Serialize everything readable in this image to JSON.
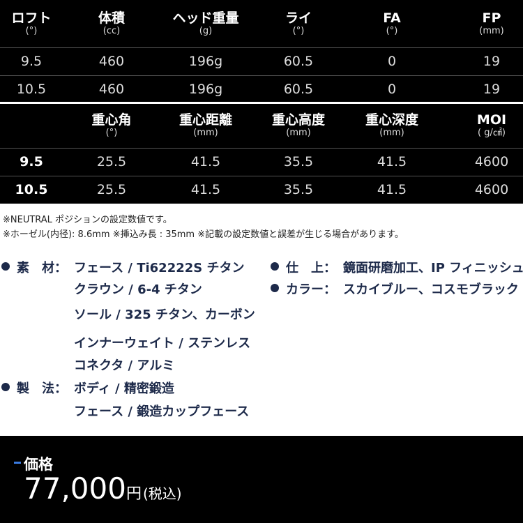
{
  "table1": {
    "headers": [
      {
        "label": "ロフト",
        "unit": "(°)"
      },
      {
        "label": "体積",
        "unit": "(cc)"
      },
      {
        "label": "ヘッド重量",
        "unit": "(g)"
      },
      {
        "label": "ライ",
        "unit": "(°)"
      },
      {
        "label": "FA",
        "unit": "(°)"
      },
      {
        "label": "FP",
        "unit": "(mm)"
      }
    ],
    "rows": [
      [
        "9.5",
        "460",
        "196g",
        "60.5",
        "0",
        "19"
      ],
      [
        "10.5",
        "460",
        "196g",
        "60.5",
        "0",
        "19"
      ]
    ]
  },
  "table2": {
    "headers": [
      null,
      {
        "label": "重心角",
        "unit": "(°)"
      },
      {
        "label": "重心距離",
        "unit": "(mm)"
      },
      {
        "label": "重心高度",
        "unit": "(mm)"
      },
      {
        "label": "重心深度",
        "unit": "(mm)"
      },
      {
        "label": "MOI",
        "unit": "( g/㎠)"
      }
    ],
    "rows": [
      [
        "9.5",
        "25.5",
        "41.5",
        "35.5",
        "41.5",
        "4600"
      ],
      [
        "10.5",
        "25.5",
        "41.5",
        "35.5",
        "41.5",
        "4600"
      ]
    ]
  },
  "notes": [
    "※NEUTRAL ポジションの設定数値です。",
    "※ホーゼル(内径): 8.6mm ※挿込み長 : 35mm ※記載の設定数値と誤差が生じる場合があります。"
  ],
  "specs_left": [
    {
      "label": "素　材：",
      "items": [
        "フェース / Ti62222S チタン",
        "クラウン / 6-4 チタン",
        "ソール / 325 チタン、カーボン",
        "インナーウェイト / ステンレス",
        "コネクタ / アルミ"
      ]
    },
    {
      "label": "製　法：",
      "items": [
        "ボディ / 精密鍛造",
        "フェース / 鍛造カップフェース"
      ]
    }
  ],
  "specs_right": [
    {
      "label": "仕　上：",
      "items": [
        "鏡面研磨加工、IP フィニッシュ"
      ]
    },
    {
      "label": "カラー：",
      "items": [
        "スカイブルー、コスモブラック"
      ]
    }
  ],
  "price": {
    "label": "価格",
    "amount": "77,000",
    "unit": "円",
    "tax": "(税込)"
  }
}
